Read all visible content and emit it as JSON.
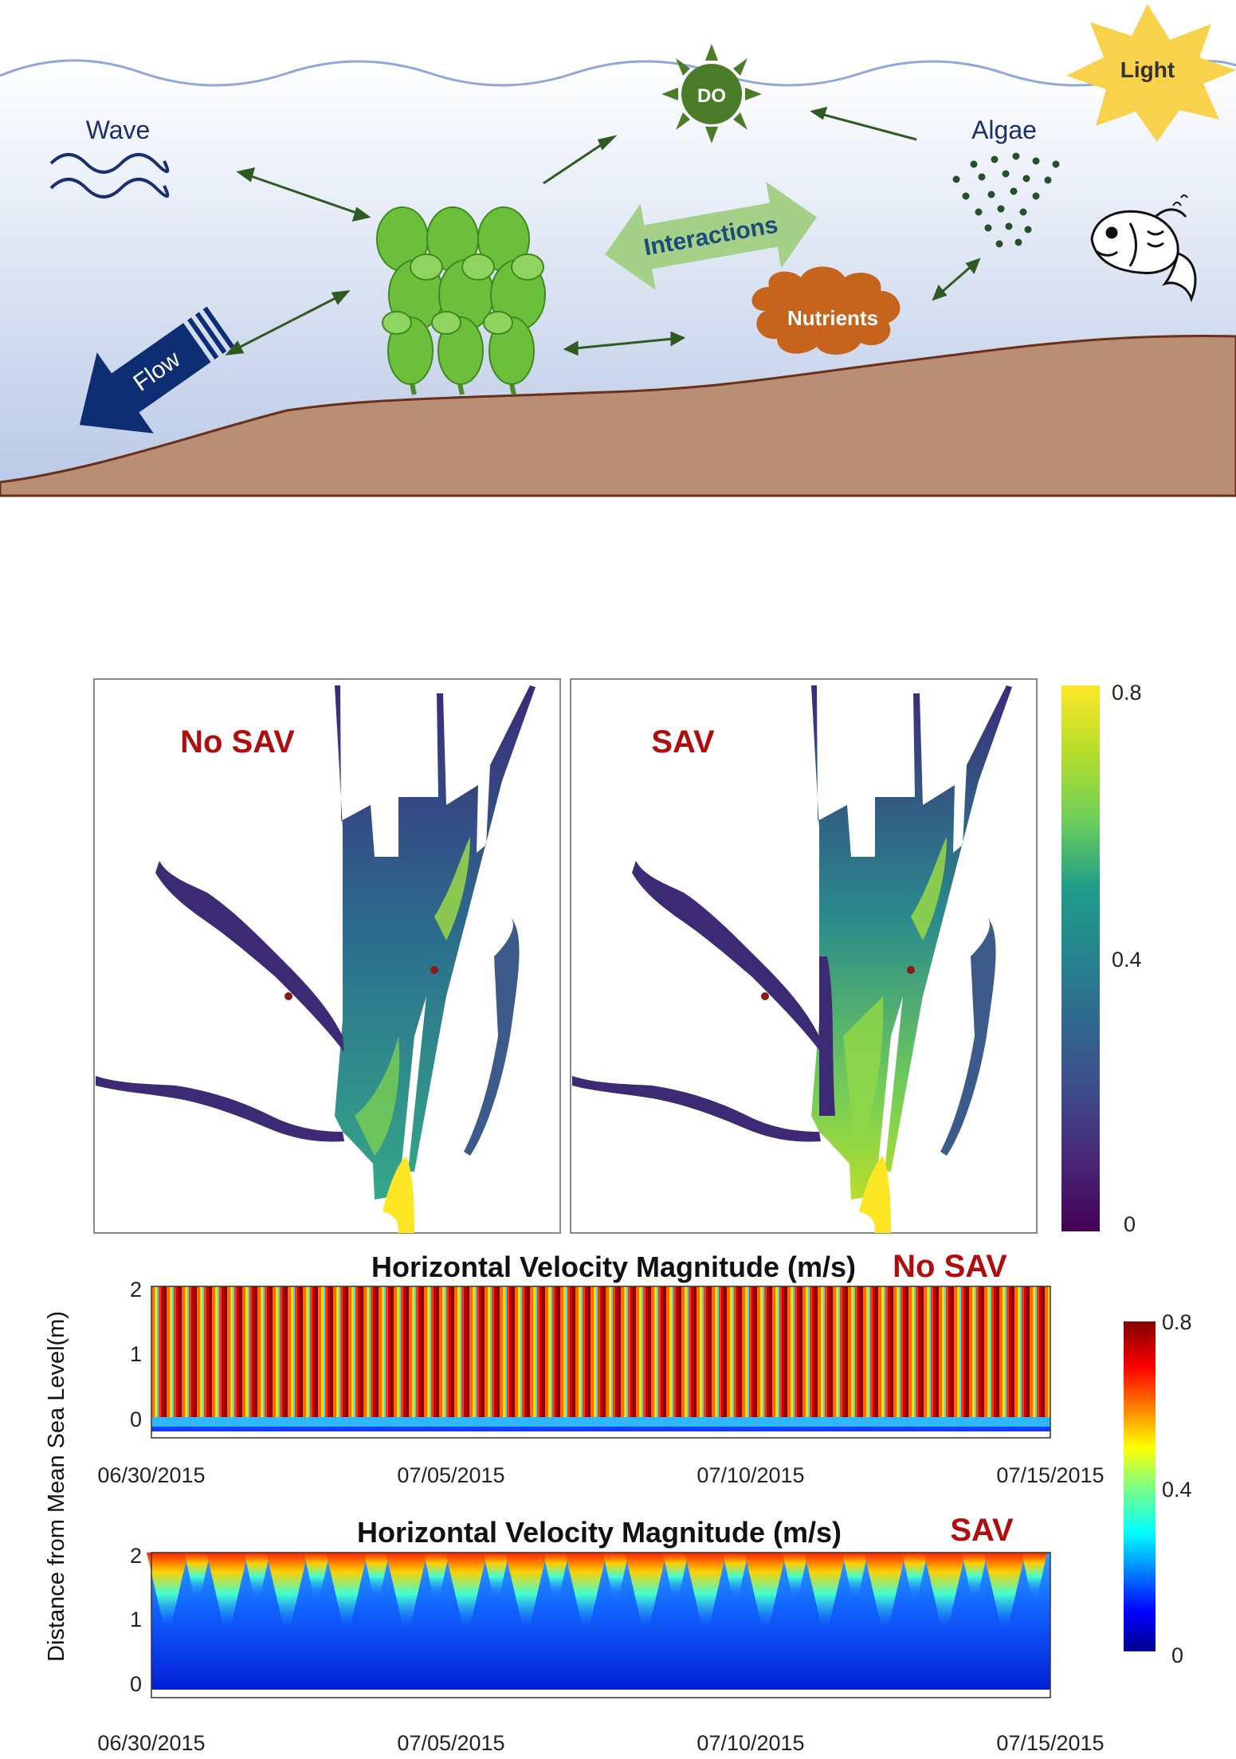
{
  "schematic": {
    "labels": {
      "wave": "Wave",
      "flow": "Flow",
      "do": "DO",
      "algae": "Algae",
      "light": "Light",
      "interactions": "Interactions",
      "nutrients": "Nutrients"
    },
    "colors": {
      "water_top": "#ffffff",
      "water_bottom": "#b9c8e6",
      "seabed": "#b88e74",
      "seabed_line": "#6b2f1a",
      "arrow": "#2f5a22",
      "flow_arrow": "#0e2e74",
      "sun_do": "#4a7c2a",
      "light": "#f8d24b",
      "nutrients": "#c6641e",
      "interactions": "#a5d087"
    }
  },
  "maps": {
    "left_title": "No SAV",
    "right_title": "SAV",
    "colorbar": {
      "colormap": "viridis",
      "ticks": [
        "0.8",
        "0.4",
        "0"
      ],
      "range": [
        0,
        0.8
      ]
    }
  },
  "profiles": {
    "ylabel": "Distance from Mean Sea Level(m)",
    "yticks": [
      "2",
      "1",
      "0"
    ],
    "xticks": [
      "06/30/2015",
      "07/05/2015",
      "07/10/2015",
      "07/15/2015"
    ],
    "colorbar": {
      "colormap": "jet",
      "ticks": [
        "0.8",
        "0.4",
        "0"
      ],
      "range": [
        0,
        0.8
      ]
    },
    "panels": [
      {
        "title": "Horizontal Velocity Magnitude (m/s)",
        "tag": "No SAV"
      },
      {
        "title": "Horizontal Velocity Magnitude (m/s)",
        "tag": "SAV"
      }
    ]
  }
}
